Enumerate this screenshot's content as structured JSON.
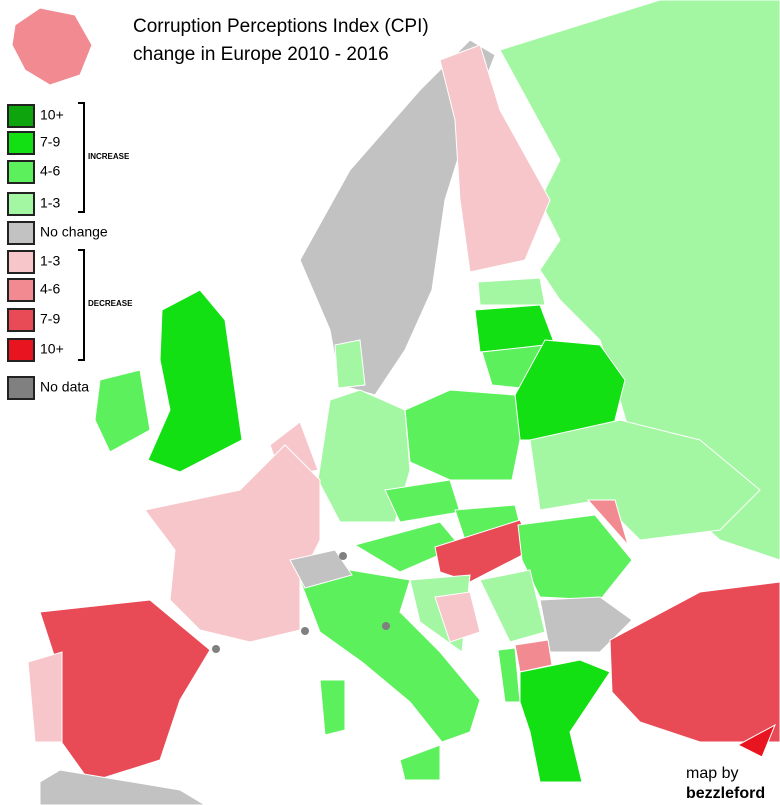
{
  "title": [
    "Corruption Perceptions Index (CPI)",
    "change in Europe 2010 - 2016"
  ],
  "legend": {
    "groups": [
      "INCREASE",
      "DECREASE"
    ],
    "items": [
      {
        "label": "10+",
        "color": "#0ea40e"
      },
      {
        "label": "7-9",
        "color": "#12e012"
      },
      {
        "label": "4-6",
        "color": "#5cf05c"
      },
      {
        "label": "1-3",
        "color": "#a3f7a3"
      },
      {
        "label": "No change",
        "color": "#c2c2c2"
      },
      {
        "label": "1-3",
        "color": "#f7c6ca"
      },
      {
        "label": "4-6",
        "color": "#f28b91"
      },
      {
        "label": "7-9",
        "color": "#e84a56"
      },
      {
        "label": "10+",
        "color": "#e8141f"
      },
      {
        "label": "No data",
        "color": "#808080"
      }
    ]
  },
  "credit": [
    "map by",
    "bezzleford"
  ]
}
